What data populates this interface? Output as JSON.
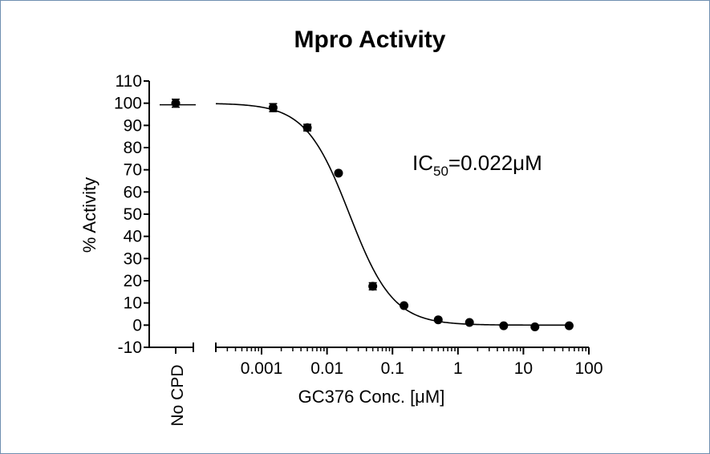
{
  "chart_data": {
    "type": "scatter",
    "title": "Mpro Activity",
    "xlabel": "GC376 Conc. [μM]",
    "ylabel": "% Activity",
    "x_scale": "log",
    "xlim": [
      0.0002,
      100
    ],
    "ylim": [
      -10,
      110
    ],
    "grid": false,
    "y_ticks": [
      -10,
      0,
      10,
      20,
      30,
      40,
      50,
      60,
      70,
      80,
      90,
      100,
      110
    ],
    "y_tick_labels": [
      "-10",
      "0",
      "10",
      "20",
      "30",
      "40",
      "50",
      "60",
      "70",
      "80",
      "90",
      "100",
      "110"
    ],
    "x_ticks": [
      0.001,
      0.01,
      0.1,
      1,
      10,
      100
    ],
    "x_tick_labels": [
      "0.001",
      "0.01",
      "0.1",
      "1",
      "10",
      "100"
    ],
    "control": {
      "label": "No CPD",
      "value": 100,
      "error": 1.8
    },
    "points": [
      {
        "x": 0.0015,
        "y": 98,
        "err": 1.8
      },
      {
        "x": 0.005,
        "y": 89,
        "err": 1.5
      },
      {
        "x": 0.015,
        "y": 68.5,
        "err": 0
      },
      {
        "x": 0.05,
        "y": 17.5,
        "err": 1.6
      },
      {
        "x": 0.15,
        "y": 8.8,
        "err": 0
      },
      {
        "x": 0.5,
        "y": 2.4,
        "err": 0
      },
      {
        "x": 1.5,
        "y": 1.2,
        "err": 0
      },
      {
        "x": 5,
        "y": -0.3,
        "err": 0
      },
      {
        "x": 15,
        "y": -0.8,
        "err": 0
      },
      {
        "x": 50,
        "y": -0.3,
        "err": 0
      }
    ],
    "fit": {
      "model": "four-parameter logistic",
      "top": 100,
      "bottom": 0,
      "ic50": 0.022,
      "hill": 1.3
    },
    "annotation": {
      "prefix": "IC",
      "subscript": "50",
      "suffix": "=0.022μM"
    }
  }
}
